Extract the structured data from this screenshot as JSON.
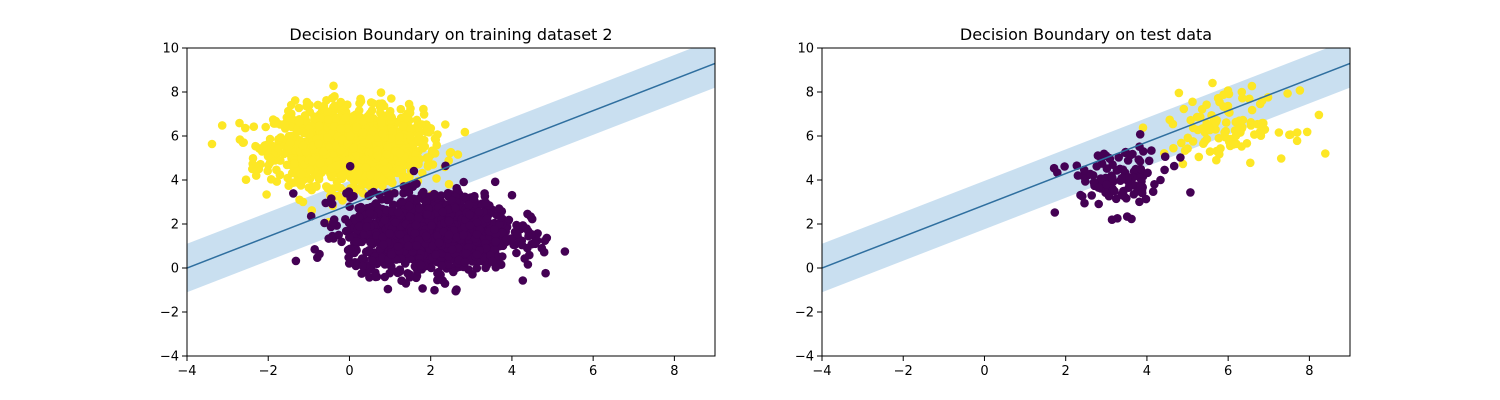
{
  "chart_data": [
    {
      "type": "scatter",
      "title": "Decision Boundary on training dataset 2",
      "xlabel": "",
      "ylabel": "",
      "xlim": [
        -4,
        9
      ],
      "ylim": [
        -4,
        10
      ],
      "xticks": [
        -4,
        -2,
        0,
        2,
        4,
        6,
        8
      ],
      "yticks": [
        -4,
        -2,
        0,
        2,
        4,
        6,
        8,
        10
      ],
      "grid": false,
      "boundary_line": {
        "points": [
          [
            -4,
            0
          ],
          [
            9,
            9.3
          ]
        ],
        "margin_band": 1.1,
        "line_color": "#2f6f9f",
        "band_color": "#bcd7ec"
      },
      "series": [
        {
          "class": 1,
          "color": "#fde725",
          "center": [
            0,
            5.5
          ],
          "spread": [
            0.9,
            0.85
          ],
          "n": 1500
        },
        {
          "class": 0,
          "color": "#440154",
          "center": [
            2,
            1.6
          ],
          "spread": [
            1.0,
            0.85
          ],
          "n": 1500
        }
      ]
    },
    {
      "type": "scatter",
      "title": "Decision Boundary on test data",
      "xlabel": "",
      "ylabel": "",
      "xlim": [
        -4,
        9
      ],
      "ylim": [
        -4,
        10
      ],
      "xticks": [
        -4,
        -2,
        0,
        2,
        4,
        6,
        8
      ],
      "yticks": [
        -4,
        -2,
        0,
        2,
        4,
        6,
        8,
        10
      ],
      "grid": false,
      "boundary_line": {
        "points": [
          [
            -4,
            0
          ],
          [
            9,
            9.3
          ]
        ],
        "margin_band": 1.1,
        "line_color": "#2f6f9f",
        "band_color": "#bcd7ec"
      },
      "series": [
        {
          "class": 1,
          "color": "#fde725",
          "center": [
            6,
            6.5
          ],
          "spread": [
            0.75,
            0.75
          ],
          "n": 110
        },
        {
          "class": 0,
          "color": "#440154",
          "center": [
            3.3,
            4.0
          ],
          "spread": [
            0.65,
            0.75
          ],
          "n": 110
        }
      ]
    }
  ]
}
